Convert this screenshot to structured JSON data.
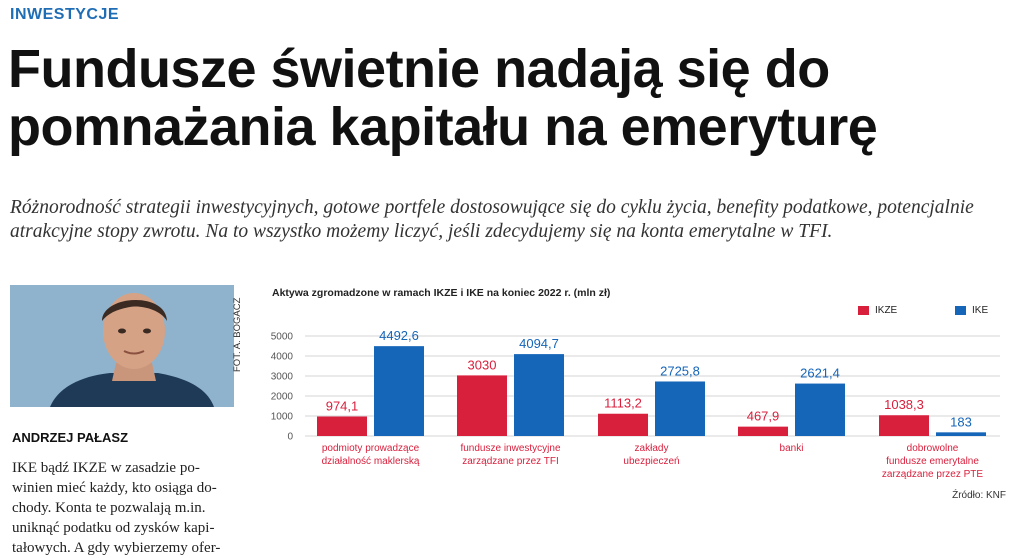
{
  "article": {
    "section": "INWESTYCJE",
    "title": "Fundusze świetnie nadają się do pomnażania kapitału na emeryturę",
    "lead": "Różnorodność strategii inwestycyjnych, gotowe portfele dostosowujące się do cyklu życia, benefity podatkowe, potencjalnie atrakcyjne stopy zwrotu. Na to wszystko możemy liczyć, jeśli zdecydujemy się na konta emerytalne w TFI.",
    "photo_credit": "FOT. A. BOGACZ",
    "author": "ANDRZEJ PAŁASZ",
    "body_lines": [
      "IKE bądź IKZE w zasadzie po-",
      "winien mieć każdy, kto osiąga do-",
      "chody. Konta te pozwalają m.in.",
      "uniknąć podatku od zysków kapi-",
      "tałowych. A gdy wybierzemy ofer-"
    ]
  },
  "chart_data": {
    "type": "bar",
    "title": "Aktywa zgromadzone w ramach IKZE i IKE na koniec 2022 r. (mln zł)",
    "categories": [
      [
        "podmioty prowadzące",
        "działalność maklerską"
      ],
      [
        "fundusze inwestycyjne",
        "zarządzane przez TFI"
      ],
      [
        "zakłady",
        "ubezpieczeń"
      ],
      [
        "banki"
      ],
      [
        "dobrowolne",
        "fundusze emerytalne",
        "zarządzane przez PTE"
      ]
    ],
    "series": [
      {
        "name": "IKZE",
        "color": "#d81f3c",
        "values": [
          974.1,
          3030,
          1113.2,
          467.9,
          1038.3
        ],
        "labels": [
          "974,1",
          "3030",
          "1113,2",
          "467,9",
          "1038,3"
        ]
      },
      {
        "name": "IKE",
        "color": "#1565b8",
        "values": [
          4492.6,
          4094.7,
          2725.8,
          2621.4,
          183
        ],
        "labels": [
          "4492,6",
          "4094,7",
          "2725,8",
          "2621,4",
          "183"
        ]
      }
    ],
    "ylim": [
      0,
      5000
    ],
    "yticks": [
      "0",
      "1000",
      "2000",
      "3000",
      "4000",
      "5000"
    ],
    "source": "Źródło: KNF",
    "legend_position": "top-right",
    "grid": true
  }
}
